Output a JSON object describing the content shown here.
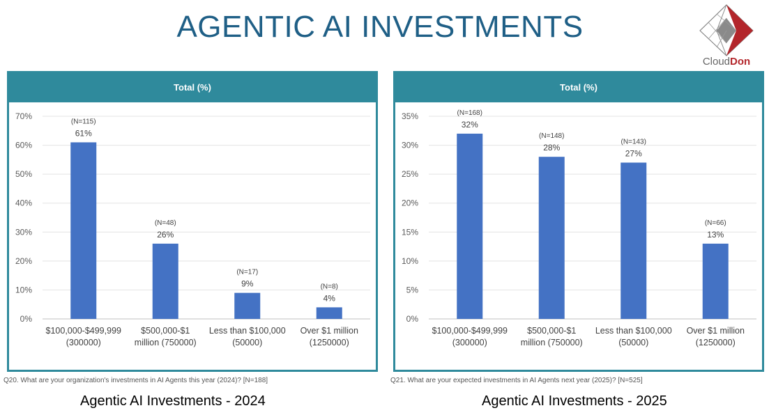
{
  "page": {
    "title": "AGENTIC AI INVESTMENTS",
    "logo": {
      "text_part1": "Cloud",
      "text_part2": "Don",
      "brand_color": "#b3262b"
    }
  },
  "colors": {
    "title": "#1f5f86",
    "panel_accent": "#2f8a9c",
    "bar": "#4472c4"
  },
  "panels": [
    {
      "header": "Total (%)",
      "footnote": "Q20. What are your organization's investments in AI Agents this year (2024)? [N=188]",
      "caption": "Agentic AI Investments - 2024"
    },
    {
      "header": "Total (%)",
      "footnote": "Q21. What are your expected investments in AI Agents next year (2025)? [N=525]",
      "caption": "Agentic AI Investments - 2025"
    }
  ],
  "chart_data": [
    {
      "type": "bar",
      "title": "Total (%)",
      "categories": [
        [
          "$100,000-$499,999",
          "(300000)"
        ],
        [
          "$500,000-$1",
          "million (750000)"
        ],
        [
          "Less than $100,000",
          "(50000)"
        ],
        [
          "Over $1 million",
          "(1250000)"
        ]
      ],
      "values": [
        61,
        26,
        9,
        4
      ],
      "value_labels": [
        "61%",
        "26%",
        "9%",
        "4%"
      ],
      "n_labels": [
        "(N=115)",
        "(N=48)",
        "(N=17)",
        "(N=8)"
      ],
      "ylim": [
        0,
        70
      ],
      "yticks": [
        0,
        10,
        20,
        30,
        40,
        50,
        60,
        70
      ],
      "ytick_labels": [
        "0%",
        "10%",
        "20%",
        "30%",
        "40%",
        "50%",
        "60%",
        "70%"
      ],
      "grid": true
    },
    {
      "type": "bar",
      "title": "Total (%)",
      "categories": [
        [
          "$100,000-$499,999",
          "(300000)"
        ],
        [
          "$500,000-$1",
          "million (750000)"
        ],
        [
          "Less than $100,000",
          "(50000)"
        ],
        [
          "Over $1 million",
          "(1250000)"
        ]
      ],
      "values": [
        32,
        28,
        27,
        13
      ],
      "value_labels": [
        "32%",
        "28%",
        "27%",
        "13%"
      ],
      "n_labels": [
        "(N=168)",
        "(N=148)",
        "(N=143)",
        "(N=66)"
      ],
      "ylim": [
        0,
        35
      ],
      "yticks": [
        0,
        5,
        10,
        15,
        20,
        25,
        30,
        35
      ],
      "ytick_labels": [
        "0%",
        "5%",
        "10%",
        "15%",
        "20%",
        "25%",
        "30%",
        "35%"
      ],
      "grid": true
    }
  ]
}
